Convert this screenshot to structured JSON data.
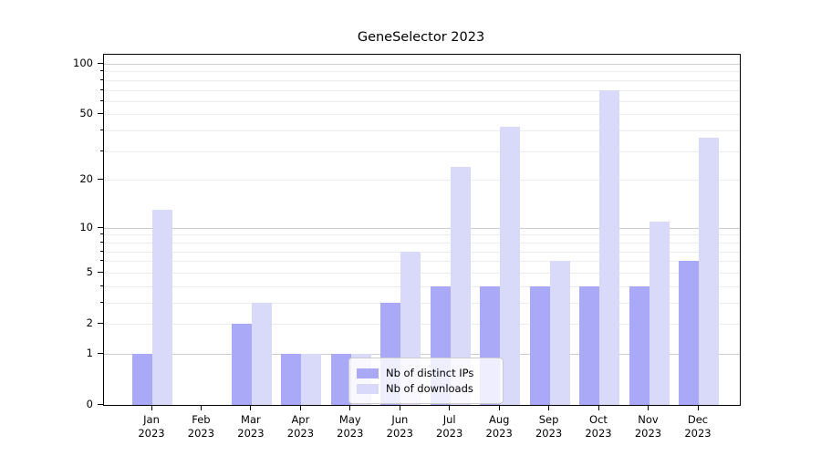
{
  "chart_data": {
    "type": "bar",
    "title": "GeneSelector 2023",
    "x_months": [
      "Jan",
      "Feb",
      "Mar",
      "Apr",
      "May",
      "Jun",
      "Jul",
      "Aug",
      "Sep",
      "Oct",
      "Nov",
      "Dec"
    ],
    "x_year": "2023",
    "y_ticks": [
      0,
      1,
      2,
      5,
      10,
      20,
      50,
      100
    ],
    "ylim": [
      0,
      115
    ],
    "yscale": "log(1+v)",
    "grid": "both",
    "legend_position": "lower center",
    "series": [
      {
        "name": "Nb of distinct IPs",
        "color": "#a9a9f7",
        "values": [
          1,
          0,
          2,
          1,
          1,
          3,
          4,
          4,
          4,
          4,
          4,
          6
        ]
      },
      {
        "name": "Nb of downloads",
        "color": "#d9d9fa",
        "values": [
          13,
          0,
          3,
          1,
          1,
          7,
          24,
          42,
          6,
          70,
          11,
          36
        ]
      }
    ],
    "colors": {
      "major_grid": "#cccccc",
      "minor_grid": "#ededed",
      "axis": "#000000"
    }
  }
}
